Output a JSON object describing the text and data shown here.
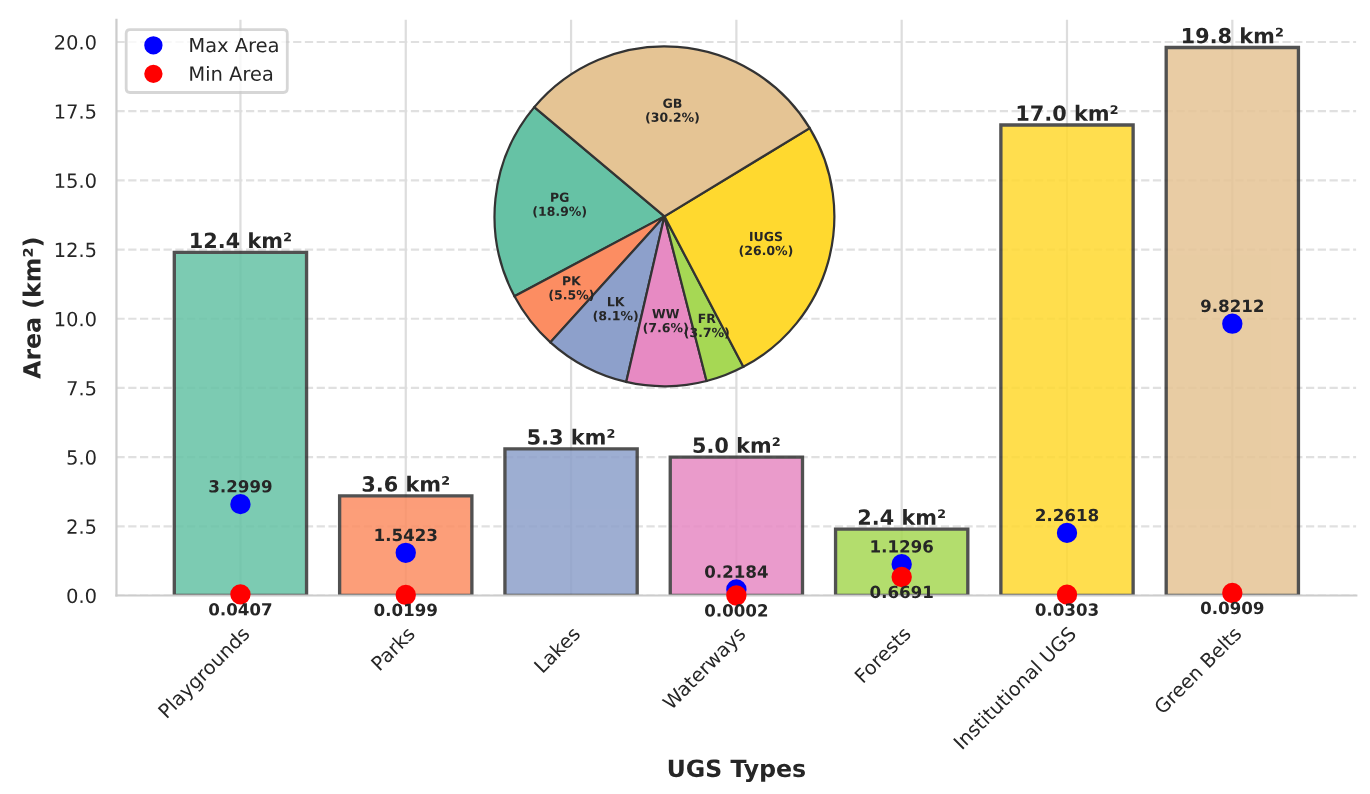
{
  "chart_data": [
    {
      "type": "bar",
      "xlabel": "UGS Types",
      "ylabel": "Area (km²)",
      "categories": [
        "Playgrounds",
        "Parks",
        "Lakes",
        "Waterways",
        "Forests",
        "Institutional UGS",
        "Green Belts"
      ],
      "series": [
        {
          "type": "bar",
          "colors": [
            "#66c2a5",
            "#fc8d62",
            "#8da0cb",
            "#e78ac3",
            "#a6d854",
            "#ffd92f",
            "#e5c494"
          ],
          "values": [
            12.4,
            3.6,
            5.3,
            5.0,
            2.4,
            17.0,
            19.8
          ],
          "value_labels": [
            "12.4 km²",
            "3.6 km²",
            "5.3 km²",
            "5.0 km²",
            "2.4 km²",
            "17.0 km²",
            "19.8 km²"
          ]
        },
        {
          "type": "scatter",
          "name": "Max Area",
          "color": "#0000ff",
          "x": [
            "Playgrounds",
            "Parks",
            "Lakes",
            "Waterways",
            "Forests",
            "Institutional UGS",
            "Green Belts"
          ],
          "values": [
            3.2999,
            1.5423,
            null,
            0.2184,
            1.1296,
            2.2618,
            9.8212
          ],
          "value_labels": [
            "3.2999",
            "1.5423",
            null,
            "0.2184",
            "1.1296",
            "2.2618",
            "9.8212"
          ]
        },
        {
          "type": "scatter",
          "name": "Min Area",
          "color": "#ff0000",
          "x": [
            "Playgrounds",
            "Parks",
            "Lakes",
            "Waterways",
            "Forests",
            "Institutional UGS",
            "Green Belts"
          ],
          "values": [
            0.0407,
            0.0199,
            null,
            0.0002,
            0.6691,
            0.0303,
            0.0909
          ],
          "value_labels": [
            "0.0407",
            "0.0199",
            null,
            "0.0002",
            "0.6691",
            "0.0303",
            "0.0909"
          ]
        }
      ],
      "ylim": [
        0,
        20.8
      ],
      "yticks": [
        {
          "value": 0,
          "label": "0.0"
        },
        {
          "value": 2.5,
          "label": "2.5"
        },
        {
          "value": 5,
          "label": "5.0"
        },
        {
          "value": 7.5,
          "label": "7.5"
        },
        {
          "value": 10,
          "label": "10.0"
        },
        {
          "value": 12.5,
          "label": "12.5"
        },
        {
          "value": 15,
          "label": "15.0"
        },
        {
          "value": 17.5,
          "label": "17.5"
        },
        {
          "value": 20,
          "label": "20.0"
        }
      ],
      "grid": true,
      "legend": "top left",
      "marker": "circle"
    },
    {
      "type": "pie",
      "categories": [
        "PG",
        "PK",
        "LK",
        "WW",
        "FR",
        "IUGS",
        "GB"
      ],
      "values": [
        18.9,
        5.5,
        8.1,
        7.6,
        3.7,
        26.0,
        30.2
      ],
      "value_labels": [
        "(18.9%)",
        "(5.5%)",
        "(8.1%)",
        "(7.6%)",
        "(3.7%)",
        "(26.0%)",
        "(30.2%)"
      ],
      "colors": [
        "#66c2a5",
        "#fc8d62",
        "#8da0cb",
        "#e78ac3",
        "#a6d854",
        "#ffd92f",
        "#e5c494"
      ]
    }
  ]
}
